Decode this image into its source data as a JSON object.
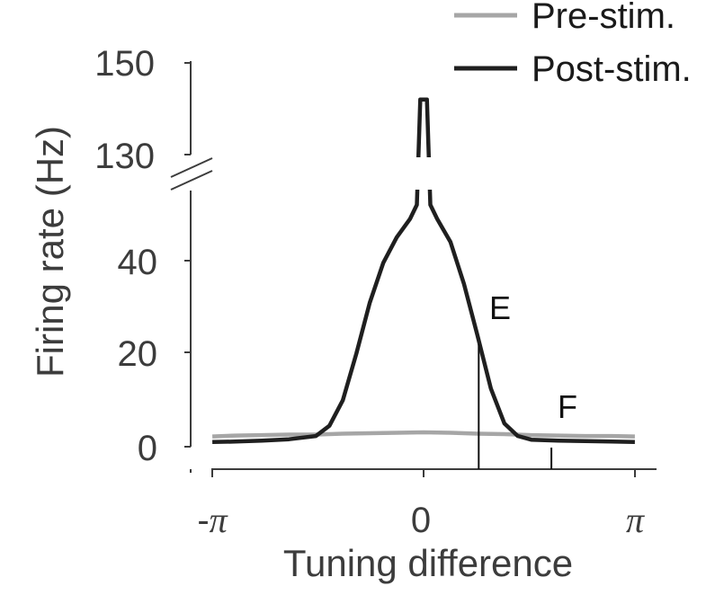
{
  "chart_data": {
    "type": "line",
    "xlabel": "Tuning difference",
    "ylabel": "Firing rate (Hz)",
    "xlim": [
      -3.1416,
      3.1416
    ],
    "x_ticks": [
      {
        "value": -3.1416,
        "prefix": "-",
        "symbol": "π"
      },
      {
        "value": 0,
        "prefix": "",
        "symbol": "0"
      },
      {
        "value": 3.1416,
        "prefix": "",
        "symbol": "π"
      }
    ],
    "y_axis_lower": {
      "ylim": [
        0,
        50
      ],
      "ticks": [
        "0",
        "20",
        "40"
      ]
    },
    "y_axis_upper": {
      "ylim": [
        128,
        150
      ],
      "ticks": [
        "130",
        "150"
      ]
    },
    "axis_break": true,
    "legend": {
      "placement": "top-right"
    },
    "series": [
      {
        "name": "Pre-stim.",
        "color": "#a6a6a6",
        "x": [
          -3.14,
          -2.8,
          -2.4,
          -2.0,
          -1.6,
          -1.2,
          -0.8,
          -0.4,
          0.0,
          0.4,
          0.8,
          1.2,
          1.6,
          2.0,
          2.4,
          2.8,
          3.14
        ],
        "y": [
          2.2,
          2.4,
          2.5,
          2.6,
          2.6,
          2.8,
          2.9,
          3.0,
          3.1,
          3.0,
          2.8,
          2.7,
          2.5,
          2.4,
          2.3,
          2.3,
          2.2
        ]
      },
      {
        "name": "Post-stim.",
        "color": "#1f1f1f",
        "x": [
          -3.14,
          -2.8,
          -2.4,
          -2.0,
          -1.6,
          -1.4,
          -1.2,
          -1.0,
          -0.8,
          -0.6,
          -0.4,
          -0.2,
          -0.1,
          -0.05,
          0.0,
          0.05,
          0.1,
          0.2,
          0.4,
          0.6,
          0.8,
          1.0,
          1.2,
          1.4,
          1.6,
          2.0,
          2.4,
          2.8,
          3.14
        ],
        "y": [
          1.0,
          1.1,
          1.3,
          1.6,
          2.3,
          4.5,
          10.0,
          20.0,
          31.0,
          39.5,
          45.0,
          49.0,
          52.0,
          142.0,
          142.0,
          142.0,
          52.0,
          49.0,
          44.0,
          35.0,
          24.0,
          12.5,
          5.0,
          2.3,
          1.5,
          1.3,
          1.2,
          1.1,
          1.0
        ]
      }
    ],
    "annotations": [
      {
        "label": "E",
        "x": 0.82,
        "y_top": 22
      },
      {
        "label": "F",
        "x": 1.9,
        "y_top": -0.2
      }
    ]
  }
}
